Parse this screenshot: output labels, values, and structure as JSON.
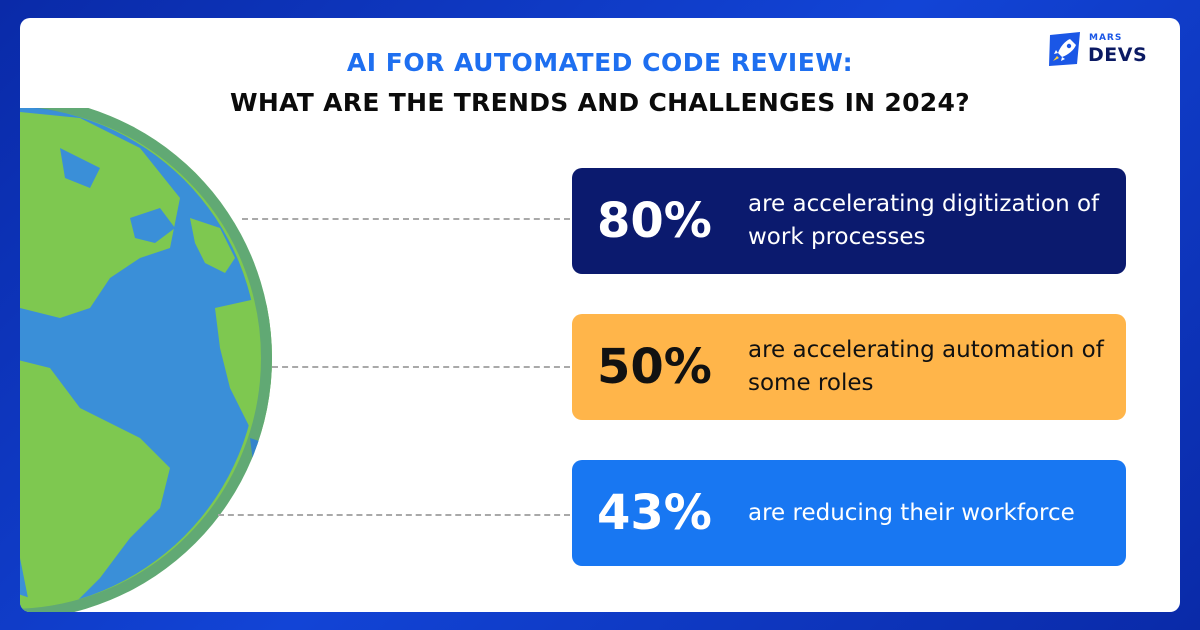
{
  "header": {
    "title_line1": "AI FOR AUTOMATED CODE REVIEW:",
    "title_line2": "WHAT ARE THE TRENDS AND CHALLENGES IN 2024?"
  },
  "logo": {
    "small_text": "MARS",
    "big_text": "DEVS",
    "icon": "rocket-icon"
  },
  "stats": [
    {
      "percent": "80%",
      "description": "are accelerating digitization of work processes",
      "bg": "#0b1a6e",
      "text_color": "#ffffff"
    },
    {
      "percent": "50%",
      "description": "are accelerating automation of some roles",
      "bg": "#ffb54a",
      "text_color": "#111111"
    },
    {
      "percent": "43%",
      "description": "are reducing their workforce",
      "bg": "#1877f2",
      "text_color": "#ffffff"
    }
  ],
  "colors": {
    "frame": "#1244d6",
    "title_accent": "#1e6ff0",
    "ocean": "#3a8fd8",
    "land": "#7ec850"
  }
}
